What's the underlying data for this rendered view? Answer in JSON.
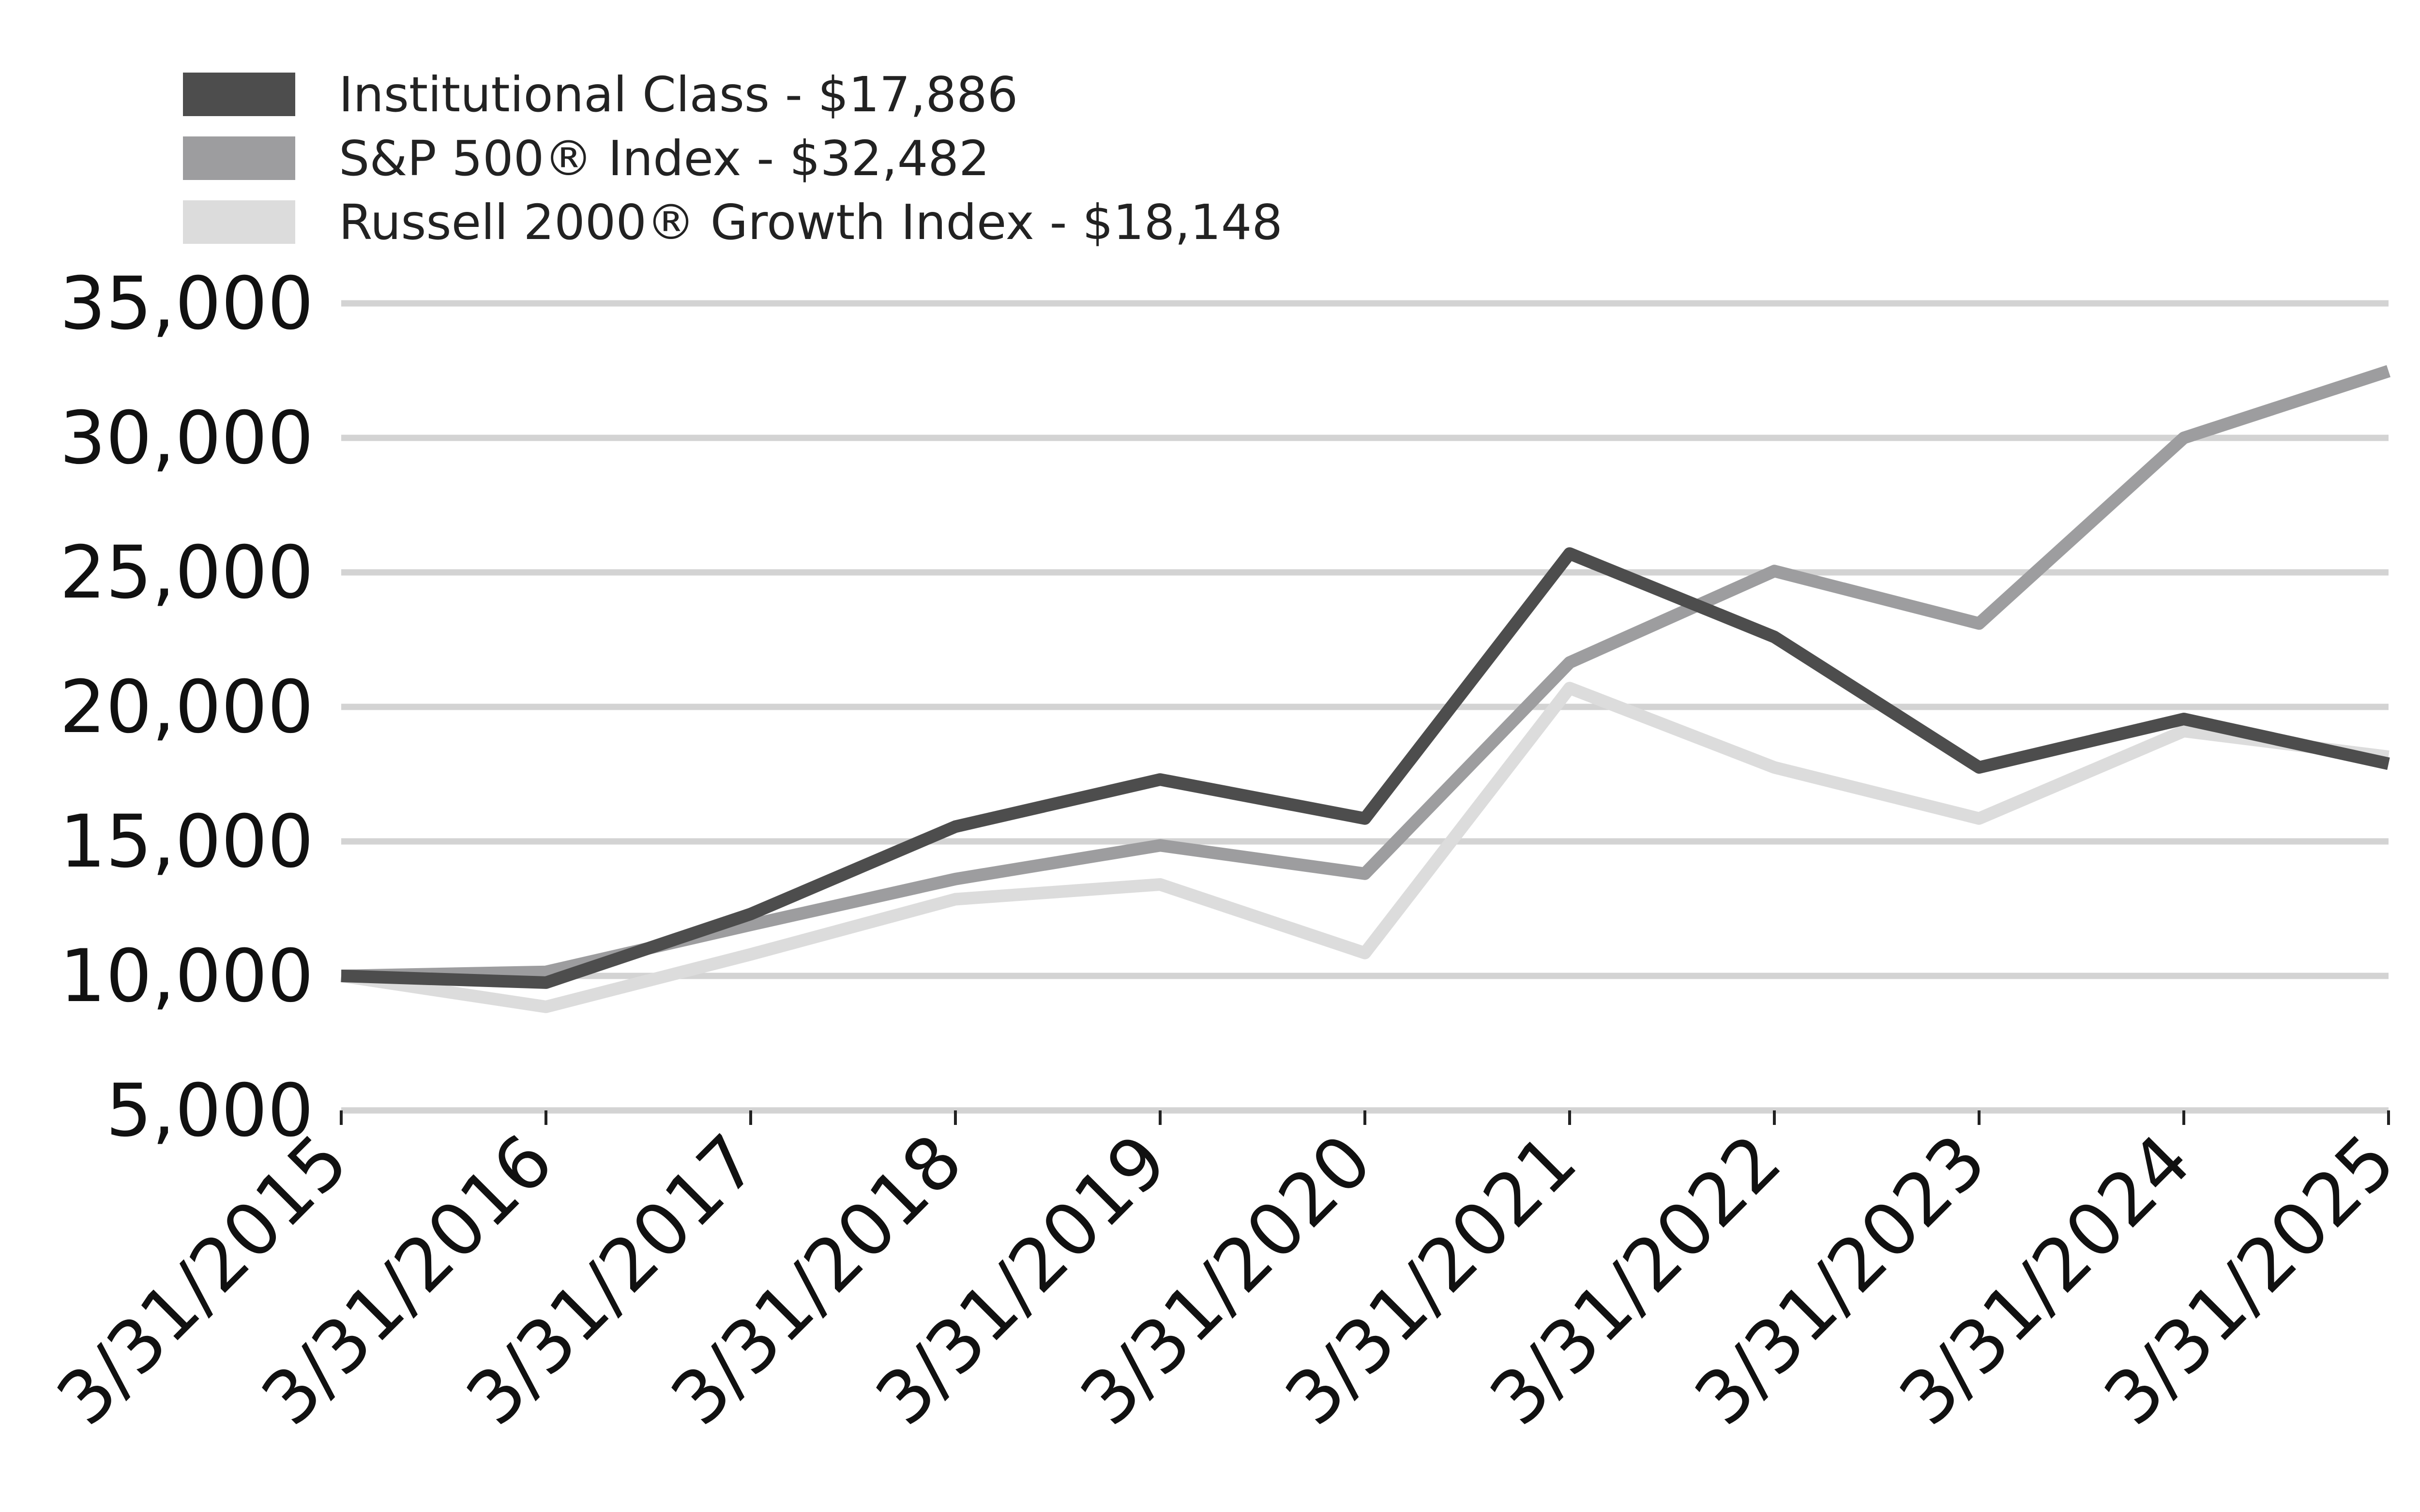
{
  "chart_data": {
    "type": "line",
    "title": "",
    "xlabel": "",
    "ylabel": "",
    "categories": [
      "3/31/2015",
      "3/31/2016",
      "3/31/2017",
      "3/31/2018",
      "3/31/2019",
      "3/31/2020",
      "3/31/2021",
      "3/31/2022",
      "3/31/2023",
      "3/31/2024",
      "3/31/2025"
    ],
    "y_ticks": [
      "5,000",
      "10,000",
      "15,000",
      "20,000",
      "25,000",
      "30,000",
      "35,000"
    ],
    "ylim": [
      5000,
      35000
    ],
    "grid": true,
    "legend_position": "top-left",
    "series": [
      {
        "name": "Institutional Class - $17,886",
        "color": "#4d4d4d",
        "values": [
          10000,
          9750,
          12300,
          15550,
          17300,
          15850,
          25700,
          22600,
          17750,
          19550,
          17886
        ]
      },
      {
        "name": "S&P 500® Index - $32,482",
        "color": "#9d9d9f",
        "values": [
          10000,
          10150,
          11900,
          13600,
          14850,
          13800,
          21650,
          25050,
          23100,
          30000,
          32482
        ]
      },
      {
        "name": "Russell 2000® Growth Index - $18,148",
        "color": "#dcdcdc",
        "values": [
          10000,
          8850,
          10800,
          12850,
          13400,
          10850,
          20700,
          17750,
          15850,
          19100,
          18148
        ]
      }
    ]
  }
}
